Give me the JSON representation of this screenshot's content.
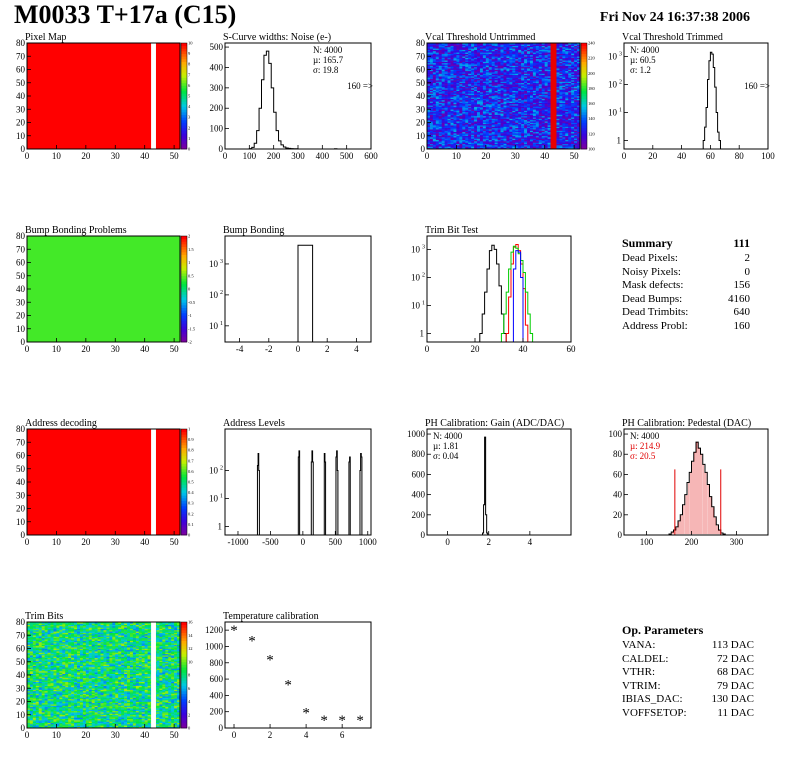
{
  "header": {
    "title": "M0033 T+17a (C15)",
    "date": "Fri Nov 24 16:37:38 2006"
  },
  "chart_data": [
    {
      "id": "pixel-map",
      "type": "heatmap",
      "title": "Pixel Map",
      "xlim": [
        0,
        52
      ],
      "ylim": [
        0,
        80
      ],
      "xticks": [
        0,
        10,
        20,
        30,
        40,
        50
      ],
      "yticks": [
        0,
        10,
        20,
        30,
        40,
        50,
        60,
        70,
        80
      ],
      "zlim": [
        0,
        10
      ],
      "zticks": [
        "0",
        "1",
        "2",
        "3",
        "4",
        "5",
        "6",
        "7",
        "8",
        "9",
        "10"
      ],
      "fill": "uniform",
      "fill_value": 10,
      "gap_columns": [
        42,
        43
      ]
    },
    {
      "id": "scurve",
      "type": "histogram",
      "title": "S-Curve widths: Noise (e-)",
      "xlim": [
        0,
        600
      ],
      "ylim": [
        0,
        520
      ],
      "xticks": [
        0,
        100,
        200,
        300,
        400,
        500,
        600
      ],
      "yticks": [
        0,
        100,
        200,
        300,
        400,
        500
      ],
      "stats": {
        "n": "N: 4000",
        "mu": "µ: 165.7",
        "sigma": "σ: 19.8"
      },
      "overflow": "160 =>",
      "hist": {
        "bin_width": 10,
        "x": [
          100,
          110,
          120,
          130,
          140,
          150,
          160,
          170,
          180,
          190,
          200,
          210,
          220,
          230,
          240,
          250,
          260,
          270,
          280,
          290,
          450
        ],
        "y": [
          2,
          8,
          28,
          90,
          200,
          340,
          460,
          480,
          420,
          300,
          180,
          90,
          40,
          20,
          10,
          5,
          3,
          2,
          1,
          1,
          1
        ]
      }
    },
    {
      "id": "vcal-untrimmed",
      "type": "heatmap",
      "title": "Vcal Threshold Untrimmed",
      "xlim": [
        0,
        52
      ],
      "ylim": [
        0,
        80
      ],
      "xticks": [
        0,
        10,
        20,
        30,
        40,
        50
      ],
      "yticks": [
        0,
        10,
        20,
        30,
        40,
        50,
        60,
        70,
        80
      ],
      "zlim": [
        80,
        255
      ],
      "zticks": [
        "100",
        "120",
        "140",
        "160",
        "180",
        "200",
        "220",
        "240"
      ],
      "fill": "noise",
      "fill_value": 115,
      "hot_columns": [
        42,
        43
      ]
    },
    {
      "id": "vcal-trimmed",
      "type": "histogram",
      "title": "Vcal Threshold Trimmed",
      "log_y": true,
      "xlim": [
        0,
        100
      ],
      "ylim": [
        0.5,
        3000
      ],
      "xticks": [
        0,
        20,
        40,
        60,
        80,
        100
      ],
      "yticks": [
        1,
        10,
        100,
        1000
      ],
      "stats": {
        "n": "N: 4000",
        "mu": "µ: 60.5",
        "sigma": "σ:  1.2"
      },
      "overflow": "160 =>",
      "hist": {
        "bin_width": 1,
        "x": [
          55,
          56,
          57,
          58,
          59,
          60,
          61,
          62,
          63,
          64,
          65,
          66
        ],
        "y": [
          1,
          3,
          15,
          150,
          700,
          1400,
          1200,
          400,
          80,
          10,
          2,
          1
        ]
      }
    },
    {
      "id": "bump-bonding-problems",
      "type": "heatmap",
      "title": "Bump Bonding Problems",
      "xlim": [
        0,
        52
      ],
      "ylim": [
        0,
        80
      ],
      "xticks": [
        0,
        10,
        20,
        30,
        40,
        50
      ],
      "yticks": [
        0,
        10,
        20,
        30,
        40,
        50,
        60,
        70,
        80
      ],
      "zlim": [
        -2,
        2
      ],
      "zticks": [
        "-2",
        "-1.5",
        "-1",
        "-0.5",
        "0",
        "0.5",
        "1",
        "1.5",
        "2"
      ],
      "fill": "uniform",
      "fill_value": 0.4
    },
    {
      "id": "bump-bonding",
      "type": "histogram",
      "title": "Bump Bonding",
      "log_y": true,
      "xlim": [
        -5,
        5
      ],
      "ylim": [
        3,
        8000
      ],
      "xticks": [
        -4,
        -2,
        0,
        2,
        4
      ],
      "yticks": [
        10,
        100,
        1000
      ],
      "hist": {
        "bin_width": 1,
        "x": [
          0
        ],
        "y": [
          4000
        ]
      }
    },
    {
      "id": "trim-bit-test",
      "type": "histogram",
      "title": "Trim Bit Test",
      "log_y": true,
      "xlim": [
        0,
        60
      ],
      "ylim": [
        0.5,
        3000
      ],
      "xticks": [
        0,
        20,
        40,
        60
      ],
      "yticks": [
        1,
        10,
        100,
        1000
      ],
      "series": [
        {
          "color": "#000000",
          "bin_width": 1,
          "x": [
            22,
            23,
            24,
            25,
            26,
            27,
            28,
            29,
            30,
            31,
            32
          ],
          "y": [
            1,
            5,
            30,
            200,
            900,
            1400,
            1000,
            300,
            50,
            5,
            1
          ]
        },
        {
          "color": "#ff0000",
          "bin_width": 1,
          "x": [
            33,
            34,
            35,
            36,
            37,
            38,
            39,
            40,
            41
          ],
          "y": [
            1,
            20,
            300,
            1200,
            1500,
            900,
            300,
            40,
            2
          ]
        },
        {
          "color": "#00cc00",
          "bin_width": 1,
          "x": [
            31,
            32,
            33,
            34,
            35,
            36,
            37,
            38,
            39,
            40,
            41,
            42,
            43
          ],
          "y": [
            1,
            5,
            30,
            200,
            800,
            1300,
            1100,
            700,
            400,
            150,
            30,
            5,
            1
          ]
        },
        {
          "color": "#0000ff",
          "bin_width": 1,
          "x": [
            36,
            37,
            38,
            39
          ],
          "y": [
            200,
            900,
            800,
            100
          ]
        }
      ]
    },
    {
      "id": "address-decoding",
      "type": "heatmap",
      "title": "Address decoding",
      "xlim": [
        0,
        52
      ],
      "ylim": [
        0,
        80
      ],
      "xticks": [
        0,
        10,
        20,
        30,
        40,
        50
      ],
      "yticks": [
        0,
        10,
        20,
        30,
        40,
        50,
        60,
        70,
        80
      ],
      "zlim": [
        0,
        1
      ],
      "zticks": [
        "0",
        "0.1",
        "0.2",
        "0.3",
        "0.4",
        "0.5",
        "0.6",
        "0.7",
        "0.8",
        "0.9",
        "1"
      ],
      "fill": "uniform",
      "fill_value": 1,
      "gap_columns": [
        42,
        43
      ]
    },
    {
      "id": "address-levels",
      "type": "histogram",
      "title": "Address Levels",
      "log_y": true,
      "xlim": [
        -1200,
        1050
      ],
      "ylim": [
        0.5,
        3000
      ],
      "xticks": [
        -1000,
        -500,
        0,
        500,
        1000
      ],
      "yticks": [
        1,
        10,
        100
      ],
      "hist": {
        "bin_width": 10,
        "x": [
          -700,
          -690,
          -680,
          -70,
          -60,
          130,
          140,
          150,
          330,
          340,
          510,
          520,
          530,
          710,
          720,
          880,
          890,
          900
        ],
        "y": [
          150,
          400,
          100,
          300,
          500,
          200,
          500,
          200,
          400,
          200,
          300,
          500,
          100,
          200,
          300,
          100,
          400,
          300
        ]
      }
    },
    {
      "id": "ph-gain",
      "type": "histogram",
      "title": "PH Calibration: Gain (ADC/DAC)",
      "xlim": [
        -1,
        6
      ],
      "ylim": [
        0,
        1050
      ],
      "xticks": [
        0,
        2,
        4
      ],
      "yticks": [
        0,
        200,
        400,
        600,
        800,
        1000
      ],
      "stats": {
        "n": "N: 4000",
        "mu": "µ: 1.81",
        "sigma": "σ: 0.04"
      },
      "hist": {
        "bin_width": 0.05,
        "x": [
          1.7,
          1.75,
          1.8,
          1.85,
          1.9
        ],
        "y": [
          20,
          300,
          970,
          200,
          20
        ]
      }
    },
    {
      "id": "ph-pedestal",
      "type": "histogram",
      "title": "PH Calibration: Pedestal (DAC)",
      "xlim": [
        50,
        370
      ],
      "ylim": [
        0,
        105
      ],
      "xticks": [
        100,
        200,
        300
      ],
      "yticks": [
        0,
        20,
        40,
        60,
        80,
        100
      ],
      "stats": {
        "n": "N: 4000",
        "mu": "µ: 214.9",
        "sigma": "σ: 20.5"
      },
      "cut_lines": [
        163,
        265
      ],
      "hist": {
        "bin_width": 5,
        "x": [
          150,
          155,
          160,
          165,
          170,
          175,
          180,
          185,
          190,
          195,
          200,
          205,
          210,
          215,
          220,
          225,
          230,
          235,
          240,
          245,
          250,
          255,
          260,
          265,
          270
        ],
        "y": [
          1,
          3,
          5,
          8,
          14,
          20,
          30,
          40,
          52,
          62,
          73,
          82,
          92,
          86,
          80,
          70,
          62,
          50,
          38,
          28,
          18,
          10,
          5,
          2,
          1
        ]
      }
    },
    {
      "id": "trim-bits",
      "type": "heatmap",
      "title": "Trim Bits",
      "xlim": [
        0,
        52
      ],
      "ylim": [
        0,
        80
      ],
      "xticks": [
        0,
        10,
        20,
        30,
        40,
        50
      ],
      "yticks": [
        0,
        10,
        20,
        30,
        40,
        50,
        60,
        70,
        80
      ],
      "zlim": [
        0,
        16
      ],
      "zticks": [
        "0",
        "2",
        "4",
        "6",
        "8",
        "10",
        "12",
        "14",
        "16"
      ],
      "fill": "noise",
      "fill_value": 8,
      "gap_columns": [
        42,
        43
      ]
    },
    {
      "id": "temperature-calibration",
      "type": "scatter",
      "title": "Temperature calibration",
      "xlim": [
        -0.5,
        7.6
      ],
      "ylim": [
        0,
        1300
      ],
      "xticks": [
        0,
        2,
        4,
        6
      ],
      "yticks": [
        0,
        200,
        400,
        600,
        800,
        1000,
        1200
      ],
      "x": [
        0,
        1,
        2,
        3,
        4,
        5,
        6,
        7
      ],
      "y": [
        1200,
        1075,
        840,
        535,
        190,
        100,
        100,
        100
      ]
    }
  ],
  "summary": {
    "title": "Summary",
    "value": "111",
    "rows": [
      {
        "label": "Dead Pixels:",
        "value": "2"
      },
      {
        "label": "Noisy Pixels:",
        "value": "0"
      },
      {
        "label": "Mask defects:",
        "value": "156"
      },
      {
        "label": "Dead Bumps:",
        "value": "4160"
      },
      {
        "label": "Dead Trimbits:",
        "value": "640"
      },
      {
        "label": "Address Probl:",
        "value": "160"
      }
    ]
  },
  "op_params": {
    "title": "Op. Parameters",
    "rows": [
      {
        "label": "VANA:",
        "value": "113 DAC"
      },
      {
        "label": "CALDEL:",
        "value": "72 DAC"
      },
      {
        "label": "VTHR:",
        "value": "68 DAC"
      },
      {
        "label": "VTRIM:",
        "value": "79 DAC"
      },
      {
        "label": "IBIAS_DAC:",
        "value": "130 DAC"
      },
      {
        "label": "VOFFSETOP:",
        "value": "11 DAC"
      }
    ]
  }
}
